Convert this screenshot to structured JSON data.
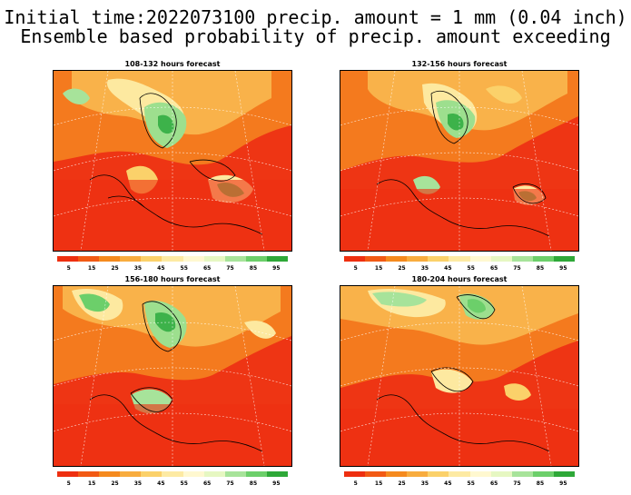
{
  "header": {
    "line1": "Initial time:2022073100 precip. amount = 1 mm (0.04 inch)",
    "line2": "Ensemble based probability of precip. amount exceeding"
  },
  "panels": [
    {
      "title": "108-132 hours forecast"
    },
    {
      "title": "132-156 hours forecast"
    },
    {
      "title": "156-180 hours forecast"
    },
    {
      "title": "180-204 hours forecast"
    }
  ],
  "colorbar": {
    "colors": [
      "#ee2f10",
      "#f25a14",
      "#f58a1e",
      "#f8ac3e",
      "#fbd16a",
      "#fdeaa3",
      "#fff8d0",
      "#e6f7c2",
      "#a7e39a",
      "#6ccf6a",
      "#2ea838"
    ],
    "labels": [
      "5",
      "15",
      "25",
      "35",
      "45",
      "55",
      "65",
      "75",
      "85",
      "95"
    ]
  }
}
